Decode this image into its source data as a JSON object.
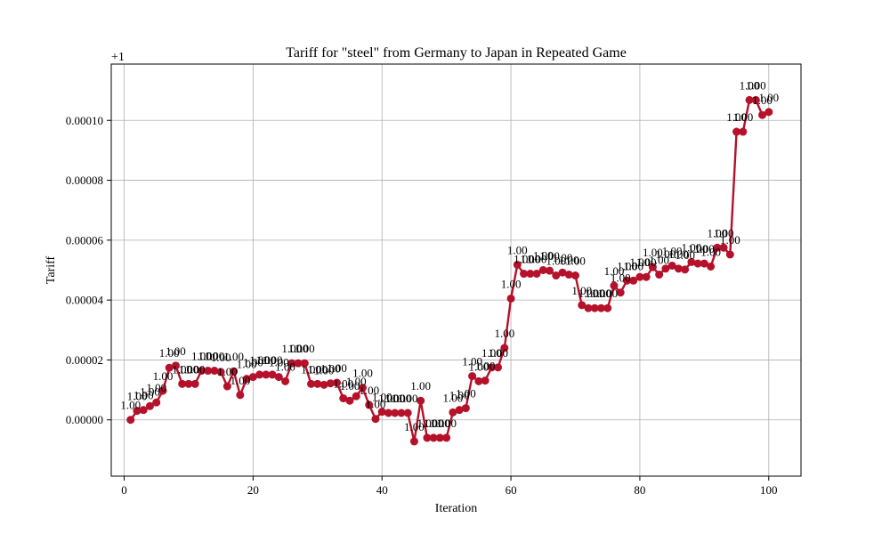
{
  "chart_data": {
    "type": "line",
    "title": "Tariff for \"steel\" from Germany to Japan in Repeated Game",
    "xlabel": "Iteration",
    "ylabel": "Tariff",
    "offset_label": "+1",
    "xlim": [
      -2,
      105
    ],
    "ylim": [
      -1.88e-05,
      0.0001188
    ],
    "x_ticks": [
      0,
      20,
      40,
      60,
      80,
      100
    ],
    "x_tick_labels": [
      "0",
      "20",
      "40",
      "60",
      "80",
      "100"
    ],
    "y_ticks": [
      0,
      2e-05,
      4e-05,
      6e-05,
      8e-05,
      0.0001
    ],
    "y_tick_labels": [
      "0.00000",
      "0.00002",
      "0.00004",
      "0.00006",
      "0.00008",
      "0.00010"
    ],
    "grid": true,
    "legend": "none",
    "point_label_text": "1.00",
    "series_color": "#b5112a",
    "x": [
      1,
      2,
      3,
      4,
      5,
      6,
      7,
      8,
      9,
      10,
      11,
      12,
      13,
      14,
      15,
      16,
      17,
      18,
      19,
      20,
      21,
      22,
      23,
      24,
      25,
      26,
      27,
      28,
      29,
      30,
      31,
      32,
      33,
      34,
      35,
      36,
      37,
      38,
      39,
      40,
      41,
      42,
      43,
      44,
      45,
      46,
      47,
      48,
      49,
      50,
      51,
      52,
      53,
      54,
      55,
      56,
      57,
      58,
      59,
      60,
      61,
      62,
      63,
      64,
      65,
      66,
      67,
      68,
      69,
      70,
      71,
      72,
      73,
      74,
      75,
      76,
      77,
      78,
      79,
      80,
      81,
      82,
      83,
      84,
      85,
      86,
      87,
      88,
      89,
      90,
      91,
      92,
      93,
      94,
      95,
      96,
      97,
      98,
      99,
      100
    ],
    "series": [
      {
        "values": [
          0.0,
          3e-06,
          3.3e-06,
          4.6e-06,
          5.8e-06,
          9.7e-06,
          1.74e-05,
          1.81e-05,
          1.2e-05,
          1.2e-05,
          1.2e-05,
          1.64e-05,
          1.64e-05,
          1.64e-05,
          1.6e-05,
          1.12e-05,
          1.62e-05,
          8.3e-06,
          1.37e-05,
          1.43e-05,
          1.51e-05,
          1.51e-05,
          1.51e-05,
          1.43e-05,
          1.29e-05,
          1.89e-05,
          1.89e-05,
          1.89e-05,
          1.2e-05,
          1.2e-05,
          1.17e-05,
          1.22e-05,
          1.24e-05,
          7.2e-06,
          6.4e-06,
          7.9e-06,
          1.07e-05,
          5e-06,
          3e-07,
          2.7e-06,
          2.3e-06,
          2.3e-06,
          2.3e-06,
          2.3e-06,
          -7.2e-06,
          6.4e-06,
          -6e-06,
          -6e-06,
          -6e-06,
          -6e-06,
          2.5e-06,
          3.3e-06,
          3.9e-06,
          1.46e-05,
          1.29e-05,
          1.31e-05,
          1.75e-05,
          1.75e-05,
          2.4e-05,
          4.05e-05,
          5.18e-05,
          4.88e-05,
          4.88e-05,
          4.88e-05,
          5e-05,
          4.98e-05,
          4.82e-05,
          4.92e-05,
          4.85e-05,
          4.82e-05,
          3.83e-05,
          3.73e-05,
          3.73e-05,
          3.73e-05,
          3.73e-05,
          4.48e-05,
          4.25e-05,
          4.65e-05,
          4.65e-05,
          4.77e-05,
          4.77e-05,
          5.1e-05,
          4.85e-05,
          5.05e-05,
          5.15e-05,
          5.05e-05,
          5.02e-05,
          5.27e-05,
          5.22e-05,
          5.22e-05,
          5.12e-05,
          5.75e-05,
          5.75e-05,
          5.52e-05,
          9.62e-05,
          9.62e-05,
          0.0001068,
          0.0001068,
          0.0001018,
          0.0001028
        ]
      }
    ]
  }
}
